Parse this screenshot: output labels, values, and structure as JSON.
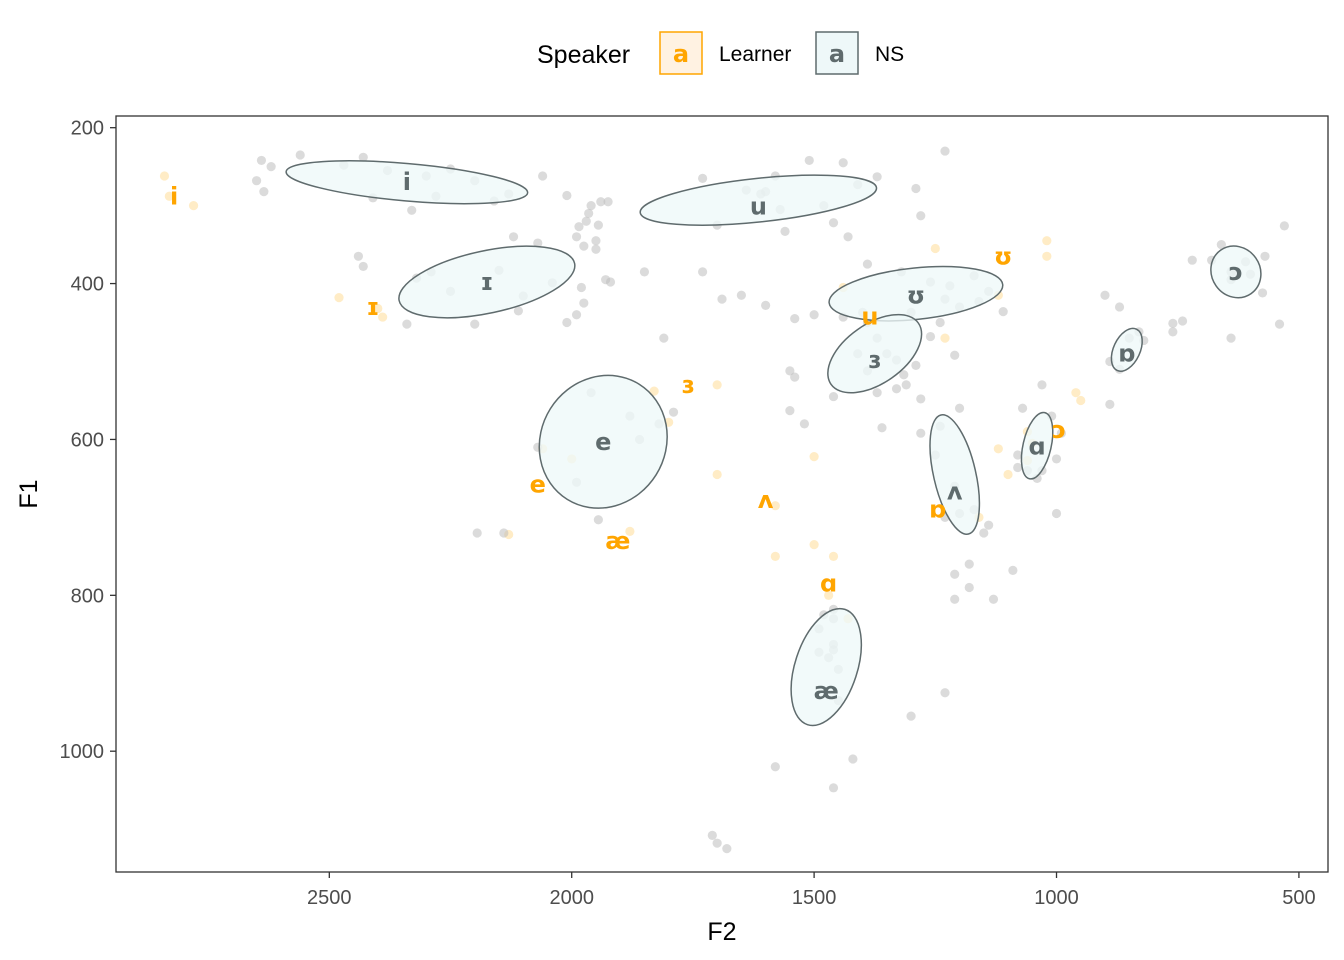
{
  "chart_data": {
    "type": "scatter",
    "title": "",
    "xlabel": "F2",
    "ylabel": "F1",
    "x_reversed": true,
    "y_reversed": true,
    "xlim": [
      2940,
      440
    ],
    "ylim": [
      185,
      1155
    ],
    "xticks": [
      2500,
      2000,
      1500,
      1000,
      500
    ],
    "yticks": [
      200,
      400,
      600,
      800,
      1000
    ],
    "grid": false,
    "legend": {
      "title": "Speaker",
      "position": "top",
      "key_glyph": "a",
      "entries": [
        {
          "label": "Learner",
          "color": "#FFA500"
        },
        {
          "label": "NS",
          "color": "#5F6B6D"
        }
      ]
    },
    "colors": {
      "learner": "#FFA500",
      "ns": "#5F6B6D",
      "ellipse_fill": "#EEF8F9",
      "ellipse_stroke": "#5F6B6D",
      "point_ns": "#BEBEBE",
      "point_learner": "#FFD580"
    },
    "series": [
      {
        "name": "NS",
        "vowel_means": [
          {
            "vowel": "i",
            "F2": 2340,
            "F1": 270
          },
          {
            "vowel": "ɪ",
            "F2": 2175,
            "F1": 398
          },
          {
            "vowel": "e",
            "F2": 1935,
            "F1": 603
          },
          {
            "vowel": "æ",
            "F2": 1475,
            "F1": 923
          },
          {
            "vowel": "u",
            "F2": 1615,
            "F1": 301
          },
          {
            "vowel": "ʊ",
            "F2": 1290,
            "F1": 415
          },
          {
            "vowel": "ɜ",
            "F2": 1375,
            "F1": 498
          },
          {
            "vowel": "ʌ",
            "F2": 1210,
            "F1": 667
          },
          {
            "vowel": "ɑ",
            "F2": 1040,
            "F1": 609
          },
          {
            "vowel": "ɒ",
            "F2": 855,
            "F1": 490
          },
          {
            "vowel": "ɔ",
            "F2": 630,
            "F1": 385
          }
        ],
        "ellipses": [
          {
            "vowel": "i",
            "cx": 2340,
            "cy": 270,
            "rx_F2": 250,
            "ry_F1": 24,
            "angle": 5
          },
          {
            "vowel": "ɪ",
            "cx": 2175,
            "cy": 398,
            "rx_F2": 185,
            "ry_F1": 40,
            "angle": -12
          },
          {
            "vowel": "e",
            "cx": 1935,
            "cy": 603,
            "rx_F2": 140,
            "ry_F1": 80,
            "angle": -58
          },
          {
            "vowel": "æ",
            "cx": 1475,
            "cy": 892,
            "rx_F2": 125,
            "ry_F1": 40,
            "angle": -72
          },
          {
            "vowel": "u",
            "cx": 1615,
            "cy": 293,
            "rx_F2": 245,
            "ry_F1": 28,
            "angle": -6
          },
          {
            "vowel": "ʊ",
            "cx": 1290,
            "cy": 413,
            "rx_F2": 180,
            "ry_F1": 33,
            "angle": -6
          },
          {
            "vowel": "ɜ",
            "cx": 1375,
            "cy": 490,
            "rx_F2": 110,
            "ry_F1": 38,
            "angle": -35
          },
          {
            "vowel": "ʌ",
            "cx": 1210,
            "cy": 645,
            "rx_F2": 126,
            "ry_F1": 27,
            "angle": 77
          },
          {
            "vowel": "ɑ",
            "cx": 1040,
            "cy": 608,
            "rx_F2": 70,
            "ry_F1": 18,
            "angle": -77
          },
          {
            "vowel": "ɒ",
            "cx": 855,
            "cy": 485,
            "rx_F2": 47,
            "ry_F1": 17,
            "angle": -65
          },
          {
            "vowel": "ɔ",
            "cx": 630,
            "cy": 385,
            "rx_F2": 50,
            "ry_F1": 34,
            "angle": -35
          }
        ],
        "tokens": [
          [
            2640,
            242
          ],
          [
            2620,
            250
          ],
          [
            2560,
            235
          ],
          [
            2470,
            248
          ],
          [
            2430,
            238
          ],
          [
            2380,
            255
          ],
          [
            2300,
            262
          ],
          [
            2250,
            253
          ],
          [
            2650,
            268
          ],
          [
            2635,
            282
          ],
          [
            2410,
            290
          ],
          [
            2330,
            306
          ],
          [
            2280,
            288
          ],
          [
            2160,
            294
          ],
          [
            2200,
            268
          ],
          [
            2130,
            285
          ],
          [
            2060,
            262
          ],
          [
            2010,
            287
          ],
          [
            2440,
            365
          ],
          [
            2430,
            378
          ],
          [
            2340,
            452
          ],
          [
            2320,
            393
          ],
          [
            2290,
            385
          ],
          [
            2250,
            410
          ],
          [
            2200,
            452
          ],
          [
            2150,
            383
          ],
          [
            2120,
            340
          ],
          [
            2070,
            348
          ],
          [
            2100,
            416
          ],
          [
            2110,
            435
          ],
          [
            2040,
            399
          ],
          [
            2010,
            450
          ],
          [
            1980,
            405
          ],
          [
            1990,
            440
          ],
          [
            1975,
            425
          ],
          [
            1920,
            398
          ],
          [
            1850,
            385
          ],
          [
            1970,
            320
          ],
          [
            1990,
            340
          ],
          [
            1985,
            327
          ],
          [
            1975,
            352
          ],
          [
            1950,
            345
          ],
          [
            1930,
            395
          ],
          [
            1960,
            300
          ],
          [
            1965,
            310
          ],
          [
            1940,
            295
          ],
          [
            1925,
            295
          ],
          [
            1945,
            325
          ],
          [
            1950,
            356
          ],
          [
            2070,
            610
          ],
          [
            1990,
            655
          ],
          [
            2140,
            720
          ],
          [
            1960,
            540
          ],
          [
            1880,
            570
          ],
          [
            1860,
            600
          ],
          [
            1820,
            580
          ],
          [
            1790,
            565
          ],
          [
            1810,
            470
          ],
          [
            2195,
            720
          ],
          [
            1945,
            703
          ],
          [
            1730,
            265
          ],
          [
            1640,
            280
          ],
          [
            1600,
            282
          ],
          [
            1700,
            325
          ],
          [
            1580,
            262
          ],
          [
            1510,
            242
          ],
          [
            1440,
            245
          ],
          [
            1410,
            273
          ],
          [
            1370,
            263
          ],
          [
            1290,
            278
          ],
          [
            1280,
            313
          ],
          [
            1610,
            285
          ],
          [
            1570,
            305
          ],
          [
            1560,
            333
          ],
          [
            1480,
            300
          ],
          [
            1460,
            322
          ],
          [
            1430,
            340
          ],
          [
            1390,
            375
          ],
          [
            1650,
            415
          ],
          [
            1730,
            385
          ],
          [
            1690,
            420
          ],
          [
            1600,
            428
          ],
          [
            1540,
            445
          ],
          [
            1500,
            440
          ],
          [
            1320,
            385
          ],
          [
            1260,
            398
          ],
          [
            1230,
            230
          ],
          [
            1220,
            403
          ],
          [
            1200,
            430
          ],
          [
            1170,
            390
          ],
          [
            1140,
            410
          ],
          [
            1160,
            423
          ],
          [
            1110,
            436
          ],
          [
            1230,
            420
          ],
          [
            1300,
            437
          ],
          [
            1440,
            443
          ],
          [
            1400,
            437
          ],
          [
            1390,
            450
          ],
          [
            1370,
            470
          ],
          [
            1350,
            490
          ],
          [
            1330,
            498
          ],
          [
            1315,
            517
          ],
          [
            1290,
            505
          ],
          [
            1280,
            548
          ],
          [
            1410,
            490
          ],
          [
            1390,
            512
          ],
          [
            1370,
            540
          ],
          [
            1330,
            535
          ],
          [
            1310,
            530
          ],
          [
            1260,
            468
          ],
          [
            1240,
            450
          ],
          [
            1210,
            492
          ],
          [
            1550,
            512
          ],
          [
            1540,
            520
          ],
          [
            1550,
            563
          ],
          [
            1520,
            580
          ],
          [
            1460,
            545
          ],
          [
            1360,
            585
          ],
          [
            1280,
            592
          ],
          [
            1240,
            583
          ],
          [
            1200,
            560
          ],
          [
            1210,
            660
          ],
          [
            1230,
            700
          ],
          [
            1200,
            695
          ],
          [
            1170,
            690
          ],
          [
            1210,
            773
          ],
          [
            1180,
            790
          ],
          [
            1210,
            805
          ],
          [
            1130,
            805
          ],
          [
            1090,
            768
          ],
          [
            1180,
            760
          ],
          [
            1150,
            720
          ],
          [
            1140,
            710
          ],
          [
            1250,
            620
          ],
          [
            1030,
            530
          ],
          [
            1010,
            570
          ],
          [
            990,
            592
          ],
          [
            1000,
            625
          ],
          [
            1070,
            560
          ],
          [
            1080,
            620
          ],
          [
            1060,
            640
          ],
          [
            1080,
            636
          ],
          [
            1030,
            640
          ],
          [
            1000,
            695
          ],
          [
            1040,
            650
          ],
          [
            900,
            415
          ],
          [
            870,
            430
          ],
          [
            820,
            473
          ],
          [
            830,
            462
          ],
          [
            850,
            470
          ],
          [
            890,
            500
          ],
          [
            870,
            510
          ],
          [
            890,
            555
          ],
          [
            760,
            462
          ],
          [
            760,
            451
          ],
          [
            740,
            448
          ],
          [
            720,
            370
          ],
          [
            680,
            370
          ],
          [
            660,
            350
          ],
          [
            640,
            395
          ],
          [
            630,
            385
          ],
          [
            600,
            388
          ],
          [
            570,
            365
          ],
          [
            610,
            372
          ],
          [
            575,
            412
          ],
          [
            530,
            326
          ],
          [
            540,
            452
          ],
          [
            640,
            470
          ],
          [
            640,
            385
          ],
          [
            1460,
            818
          ],
          [
            1490,
            843
          ],
          [
            1460,
            863
          ],
          [
            1450,
            895
          ],
          [
            1470,
            880
          ],
          [
            1460,
            870
          ],
          [
            1480,
            825
          ],
          [
            1490,
            873
          ],
          [
            1460,
            830
          ],
          [
            1420,
            1010
          ],
          [
            1460,
            1047
          ],
          [
            1580,
            1020
          ],
          [
            1450,
            935
          ],
          [
            1710,
            1108
          ],
          [
            1700,
            1118
          ],
          [
            1680,
            1125
          ],
          [
            1300,
            955
          ],
          [
            1230,
            925
          ]
        ]
      },
      {
        "name": "Learner",
        "vowel_means": [
          {
            "vowel": "i",
            "F2": 2820,
            "F1": 288
          },
          {
            "vowel": "ɪ",
            "F2": 2410,
            "F1": 430
          },
          {
            "vowel": "e",
            "F2": 2070,
            "F1": 658
          },
          {
            "vowel": "æ",
            "F2": 1905,
            "F1": 730
          },
          {
            "vowel": "ɜ",
            "F2": 1760,
            "F1": 530
          },
          {
            "vowel": "ʌ",
            "F2": 1600,
            "F1": 678
          },
          {
            "vowel": "ɑ",
            "F2": 1470,
            "F1": 785
          },
          {
            "vowel": "u",
            "F2": 1385,
            "F1": 442
          },
          {
            "vowel": "ʊ",
            "F2": 1110,
            "F1": 365
          },
          {
            "vowel": "ɒ",
            "F2": 1245,
            "F1": 690
          },
          {
            "vowel": "ɔ",
            "F2": 995,
            "F1": 588
          }
        ],
        "tokens": [
          [
            2840,
            262
          ],
          [
            2830,
            288
          ],
          [
            2780,
            300
          ],
          [
            2480,
            418
          ],
          [
            2400,
            432
          ],
          [
            2390,
            443
          ],
          [
            2060,
            612
          ],
          [
            2000,
            625
          ],
          [
            1830,
            538
          ],
          [
            1800,
            578
          ],
          [
            1700,
            530
          ],
          [
            1700,
            645
          ],
          [
            1880,
            718
          ],
          [
            2130,
            722
          ],
          [
            1580,
            750
          ],
          [
            1580,
            685
          ],
          [
            1500,
            622
          ],
          [
            1440,
            405
          ],
          [
            1470,
            800
          ],
          [
            1430,
            830
          ],
          [
            1460,
            750
          ],
          [
            1500,
            735
          ],
          [
            1250,
            355
          ],
          [
            1230,
            470
          ],
          [
            1120,
            415
          ],
          [
            1020,
            345
          ],
          [
            1020,
            365
          ],
          [
            1060,
            590
          ],
          [
            1060,
            627
          ],
          [
            1100,
            645
          ],
          [
            1050,
            605
          ],
          [
            1120,
            612
          ],
          [
            960,
            540
          ],
          [
            950,
            550
          ],
          [
            1160,
            700
          ]
        ]
      }
    ]
  }
}
